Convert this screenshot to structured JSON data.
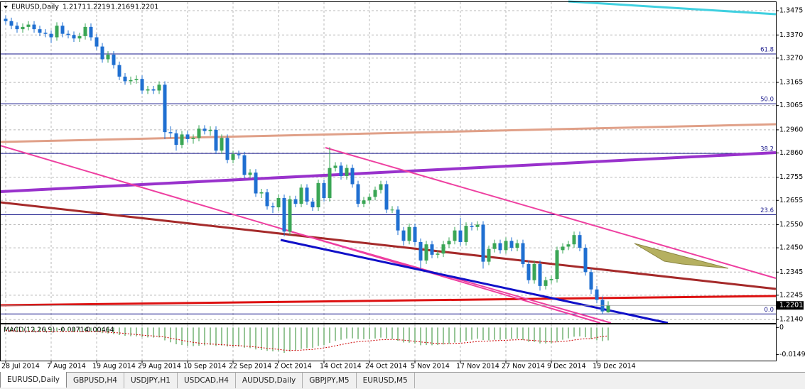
{
  "chart_data": {
    "type": "candlestick",
    "title": "EURUSD,Daily",
    "categories": [
      "28 Jul 2014",
      null,
      null,
      null,
      null,
      null,
      null,
      null,
      "7 Aug 2014",
      null,
      null,
      null,
      null,
      null,
      null,
      null,
      "19 Aug 2014",
      null,
      null,
      null,
      null,
      null,
      null,
      null,
      "29 Aug 2014",
      null,
      null,
      null,
      null,
      null,
      null,
      null,
      "10 Sep 2014",
      null,
      null,
      null,
      null,
      null,
      null,
      null,
      "22 Sep 2014",
      null,
      null,
      null,
      null,
      null,
      null,
      null,
      "2 Oct 2014",
      null,
      null,
      null,
      null,
      null,
      null,
      null,
      "14 Oct 2014",
      null,
      null,
      null,
      null,
      null,
      null,
      null,
      "24 Oct 2014",
      null,
      null,
      null,
      null,
      null,
      null,
      null,
      "5 Nov 2014",
      null,
      null,
      null,
      null,
      null,
      null,
      null,
      "17 Nov 2014",
      null,
      null,
      null,
      null,
      null,
      null,
      null,
      "27 Nov 2014",
      null,
      null,
      null,
      null,
      null,
      null,
      null,
      "9 Dec 2014",
      null,
      null,
      null,
      null,
      null,
      null,
      null,
      "19 Dec 2014",
      null,
      null
    ],
    "open": [
      1.344,
      1.343,
      1.341,
      1.3395,
      1.3405,
      1.3415,
      1.3395,
      1.338,
      1.3375,
      1.336,
      1.341,
      1.3375,
      1.337,
      1.3355,
      1.3365,
      1.3405,
      1.336,
      1.332,
      1.3265,
      1.3285,
      1.324,
      1.319,
      1.317,
      1.3175,
      1.318,
      1.313,
      1.3135,
      1.313,
      1.3155,
      1.295,
      1.2945,
      1.2895,
      1.294,
      1.292,
      1.2925,
      1.2965,
      1.2955,
      1.296,
      1.287,
      1.2925,
      1.283,
      1.2855,
      1.285,
      1.2765,
      1.2775,
      1.2685,
      1.269,
      1.263,
      1.2625,
      1.2665,
      1.252,
      1.266,
      1.264,
      1.271,
      1.265,
      1.2625,
      1.273,
      1.2665,
      1.2795,
      1.2805,
      1.276,
      1.2795,
      1.2725,
      1.264,
      1.2655,
      1.267,
      1.27,
      1.2725,
      1.2615,
      1.2615,
      1.2525,
      1.248,
      1.254,
      1.2475,
      1.2395,
      1.2465,
      1.242,
      1.2425,
      1.2465,
      1.248,
      1.2525,
      1.2475,
      1.2545,
      1.254,
      1.255,
      1.239,
      1.2445,
      1.247,
      1.244,
      1.248,
      1.245,
      1.247,
      1.238,
      1.231,
      1.238,
      1.2285,
      1.231,
      1.2315,
      1.244,
      1.2455,
      1.2465,
      1.2505,
      1.245,
      1.2345,
      1.227,
      1.2225,
      1.2171
    ],
    "high": [
      1.3455,
      1.3445,
      1.3425,
      1.342,
      1.343,
      1.343,
      1.341,
      1.3395,
      1.339,
      1.3425,
      1.3425,
      1.339,
      1.3385,
      1.338,
      1.342,
      1.342,
      1.3375,
      1.3335,
      1.33,
      1.33,
      1.3255,
      1.3205,
      1.319,
      1.3195,
      1.3195,
      1.315,
      1.315,
      1.317,
      1.317,
      1.2975,
      1.296,
      1.2955,
      1.2955,
      1.294,
      1.298,
      1.298,
      1.2975,
      1.2975,
      1.294,
      1.294,
      1.287,
      1.287,
      1.2865,
      1.279,
      1.279,
      1.2705,
      1.2705,
      1.2645,
      1.268,
      1.268,
      1.2675,
      1.2675,
      1.2725,
      1.2725,
      1.2665,
      1.2745,
      1.2745,
      1.2885,
      1.282,
      1.282,
      1.281,
      1.281,
      1.274,
      1.267,
      1.2685,
      1.2715,
      1.274,
      1.274,
      1.263,
      1.263,
      1.254,
      1.2555,
      1.2555,
      1.249,
      1.248,
      1.248,
      1.244,
      1.248,
      1.2495,
      1.254,
      1.258,
      1.256,
      1.256,
      1.2565,
      1.2565,
      1.246,
      1.2485,
      1.2485,
      1.2495,
      1.2495,
      1.2485,
      1.2485,
      1.2395,
      1.2395,
      1.2395,
      1.2325,
      1.233,
      1.2455,
      1.247,
      1.248,
      1.252,
      1.252,
      1.2465,
      1.236,
      1.2285,
      1.224,
      1.2219
    ],
    "low": [
      1.3415,
      1.3395,
      1.338,
      1.338,
      1.339,
      1.338,
      1.3365,
      1.336,
      1.3335,
      1.3345,
      1.336,
      1.3355,
      1.334,
      1.334,
      1.335,
      1.3345,
      1.3305,
      1.325,
      1.325,
      1.3225,
      1.3175,
      1.3155,
      1.3155,
      1.316,
      1.3115,
      1.3115,
      1.3115,
      1.3115,
      1.292,
      1.2925,
      1.287,
      1.288,
      1.2905,
      1.29,
      1.291,
      1.294,
      1.2935,
      1.2855,
      1.2855,
      1.2815,
      1.2815,
      1.2835,
      1.275,
      1.275,
      1.267,
      1.2665,
      1.2615,
      1.26,
      1.261,
      1.25,
      1.2505,
      1.2625,
      1.2625,
      1.2635,
      1.261,
      1.261,
      1.265,
      1.265,
      1.278,
      1.2745,
      1.2745,
      1.271,
      1.2625,
      1.2625,
      1.264,
      1.2655,
      1.2685,
      1.26,
      1.26,
      1.2505,
      1.246,
      1.2465,
      1.246,
      1.236,
      1.238,
      1.2405,
      1.2405,
      1.241,
      1.245,
      1.2465,
      1.246,
      1.246,
      1.2525,
      1.2525,
      1.236,
      1.2375,
      1.243,
      1.2425,
      1.2425,
      1.2435,
      1.2435,
      1.2365,
      1.2295,
      1.2295,
      1.2265,
      1.227,
      1.2295,
      1.23,
      1.2425,
      1.244,
      1.245,
      1.2435,
      1.233,
      1.225,
      1.221,
      1.2165,
      1.2169
    ],
    "close": [
      1.343,
      1.341,
      1.3395,
      1.3405,
      1.3415,
      1.3395,
      1.338,
      1.3375,
      1.336,
      1.341,
      1.3375,
      1.337,
      1.3355,
      1.3365,
      1.3405,
      1.336,
      1.332,
      1.3265,
      1.3285,
      1.324,
      1.319,
      1.317,
      1.3175,
      1.318,
      1.313,
      1.3135,
      1.313,
      1.3155,
      1.295,
      1.2945,
      1.2895,
      1.294,
      1.292,
      1.2925,
      1.2965,
      1.2955,
      1.296,
      1.287,
      1.2925,
      1.283,
      1.2855,
      1.285,
      1.2765,
      1.2775,
      1.2685,
      1.269,
      1.263,
      1.2625,
      1.2665,
      1.252,
      1.266,
      1.264,
      1.271,
      1.265,
      1.2625,
      1.273,
      1.2665,
      1.2795,
      1.2805,
      1.276,
      1.2795,
      1.2725,
      1.264,
      1.2655,
      1.267,
      1.27,
      1.2725,
      1.2615,
      1.2615,
      1.2525,
      1.248,
      1.254,
      1.2475,
      1.2395,
      1.2465,
      1.242,
      1.2425,
      1.2465,
      1.248,
      1.2525,
      1.2475,
      1.2545,
      1.254,
      1.255,
      1.239,
      1.2445,
      1.247,
      1.244,
      1.248,
      1.245,
      1.247,
      1.238,
      1.231,
      1.238,
      1.2285,
      1.231,
      1.2315,
      1.244,
      1.2455,
      1.2465,
      1.2505,
      1.245,
      1.2345,
      1.227,
      1.2225,
      1.2175,
      1.2201
    ],
    "up_color": "#3aa655",
    "down_color": "#1f6fd1",
    "ylim": [
      1.2125,
      1.3512
    ],
    "yticks": [
      1.3475,
      {
        "value": 1.337,
        "label": "1.3370"
      },
      {
        "value": 1.327,
        "label": "1.3270"
      },
      1.3165,
      1.3065,
      {
        "value": 1.296,
        "label": "1.2960"
      },
      {
        "value": 1.286,
        "label": "1.2860"
      },
      1.2755,
      1.2655,
      {
        "value": 1.255,
        "label": "1.2550"
      },
      {
        "value": 1.245,
        "label": "1.2450"
      },
      1.2345,
      1.2245,
      {
        "value": 1.214,
        "label": "1.2140"
      }
    ],
    "grid": true,
    "fib_levels": [
      {
        "label": "61.8",
        "value": 1.3288
      },
      {
        "label": "50.0",
        "value": 1.3073
      },
      {
        "label": "38.2",
        "value": 1.2858
      },
      {
        "label": "23.6",
        "value": 1.2593
      },
      {
        "label": "0.0",
        "value": 1.2164
      }
    ],
    "fib_color": "#1a1a8c",
    "macd": {
      "label": "MACD(12,26,9)",
      "color": "#2e8b2e",
      "signal_color": "#cc0000",
      "ylim": [
        -0.0183,
        0.0017
      ],
      "yticks": [
        0,
        -0.01494
      ],
      "main": [
        -0.002,
        -0.0021,
        -0.0022,
        -0.0022,
        -0.0021,
        -0.0022,
        -0.0023,
        -0.0024,
        -0.0025,
        -0.0023,
        -0.0023,
        -0.0023,
        -0.0024,
        -0.0024,
        -0.0022,
        -0.0023,
        -0.0026,
        -0.0031,
        -0.0033,
        -0.0037,
        -0.0042,
        -0.0046,
        -0.0048,
        -0.0049,
        -0.0053,
        -0.0055,
        -0.0056,
        -0.0055,
        -0.0071,
        -0.0082,
        -0.0093,
        -0.0097,
        -0.0101,
        -0.0103,
        -0.0101,
        -0.0099,
        -0.0097,
        -0.0102,
        -0.01,
        -0.0105,
        -0.0106,
        -0.0106,
        -0.0112,
        -0.0114,
        -0.0121,
        -0.0124,
        -0.0129,
        -0.0132,
        -0.0131,
        -0.014,
        -0.0133,
        -0.0128,
        -0.0119,
        -0.0115,
        -0.0112,
        -0.0102,
        -0.0098,
        -0.0085,
        -0.0074,
        -0.0068,
        -0.0061,
        -0.006,
        -0.0064,
        -0.0065,
        -0.0064,
        -0.0061,
        -0.0056,
        -0.0061,
        -0.0064,
        -0.0073,
        -0.0083,
        -0.0084,
        -0.0089,
        -0.0098,
        -0.0097,
        -0.0098,
        -0.0097,
        -0.0094,
        -0.009,
        -0.0083,
        -0.0081,
        -0.0073,
        -0.0068,
        -0.0062,
        -0.007,
        -0.0071,
        -0.0068,
        -0.0068,
        -0.0064,
        -0.0064,
        -0.0062,
        -0.0069,
        -0.0079,
        -0.008,
        -0.0088,
        -0.0088,
        -0.0088,
        -0.0078,
        -0.0068,
        -0.006,
        -0.0051,
        -0.0049,
        -0.0054,
        -0.0063,
        -0.0071,
        -0.0075,
        -0.00714
      ],
      "signal": [
        -0.0018,
        -0.0019,
        -0.0019,
        -0.002,
        -0.002,
        -0.002,
        -0.0021,
        -0.0021,
        -0.0022,
        -0.0022,
        -0.0022,
        -0.0022,
        -0.0023,
        -0.0023,
        -0.0023,
        -0.0023,
        -0.0023,
        -0.0024,
        -0.0026,
        -0.0028,
        -0.003,
        -0.0033,
        -0.0036,
        -0.0039,
        -0.0042,
        -0.0045,
        -0.0047,
        -0.0049,
        -0.0053,
        -0.0059,
        -0.0065,
        -0.0071,
        -0.0077,
        -0.0082,
        -0.0086,
        -0.0089,
        -0.0091,
        -0.0093,
        -0.0095,
        -0.0097,
        -0.0099,
        -0.01,
        -0.0103,
        -0.0105,
        -0.0108,
        -0.0111,
        -0.0115,
        -0.0118,
        -0.0121,
        -0.0125,
        -0.0126,
        -0.0127,
        -0.0125,
        -0.0123,
        -0.0121,
        -0.0117,
        -0.0113,
        -0.0108,
        -0.0101,
        -0.0095,
        -0.0088,
        -0.0083,
        -0.0079,
        -0.0076,
        -0.0074,
        -0.0071,
        -0.0068,
        -0.0067,
        -0.0066,
        -0.0068,
        -0.007,
        -0.0073,
        -0.0076,
        -0.008,
        -0.0083,
        -0.0086,
        -0.0088,
        -0.0089,
        -0.0089,
        -0.0088,
        -0.0087,
        -0.0084,
        -0.0081,
        -0.0077,
        -0.0076,
        -0.0075,
        -0.0073,
        -0.0072,
        -0.0071,
        -0.0069,
        -0.0068,
        -0.0068,
        -0.007,
        -0.0072,
        -0.0075,
        -0.0078,
        -0.008,
        -0.008,
        -0.0077,
        -0.0074,
        -0.0069,
        -0.0065,
        -0.0062,
        -0.0062,
        -0.0055,
        -0.005,
        -0.00464
      ]
    }
  },
  "tabs": [
    "EURUSD,Daily",
    "GBPUSD,H4",
    "USDJPY,H1",
    "USDCAD,H4",
    "AUDUSD,Daily",
    "GBPJPY,M5",
    "EURUSD,M5"
  ]
}
